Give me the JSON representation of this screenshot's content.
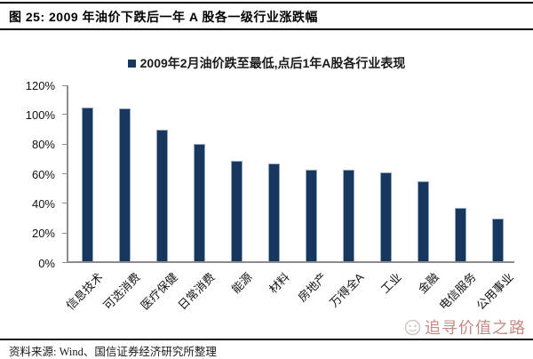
{
  "figure": {
    "title": "图 25: 2009 年油价下跌后一年 A 股各一级行业涨跌幅",
    "source": "资料来源: Wind、国信证券经济研究所整理",
    "watermark": "追寻价值之路"
  },
  "chart_data": {
    "type": "bar",
    "title": "2009年2月油价跌至最低,点后1年A股各行业表现",
    "legend": {
      "label": "2009年2月油价跌至最低,点后1年A股各行业表现",
      "position": "top",
      "marker_color": "#17375E"
    },
    "categories": [
      "信息技术",
      "可选消费",
      "医疗保健",
      "日常消费",
      "能源",
      "材料",
      "房地产",
      "万得全A",
      "工业",
      "金融",
      "电信服务",
      "公用事业"
    ],
    "values": [
      104,
      103,
      89,
      79,
      68,
      66,
      62,
      62,
      60,
      54,
      36,
      29
    ],
    "unit": "%",
    "xlabel": "",
    "ylabel": "",
    "ylim": [
      0,
      120
    ],
    "ytick_step": 20,
    "ytick_labels": [
      "0%",
      "20%",
      "40%",
      "60%",
      "80%",
      "100%",
      "120%"
    ],
    "grid": false,
    "legend_visible": true,
    "bar_color": "#17375E",
    "bar_border_color": "#93a5bd",
    "axis_color": "#8c8c8c"
  },
  "colors": {
    "accent_navy": "#17375E",
    "rule_black": "#000000",
    "watermark_red": "#BB7670"
  }
}
